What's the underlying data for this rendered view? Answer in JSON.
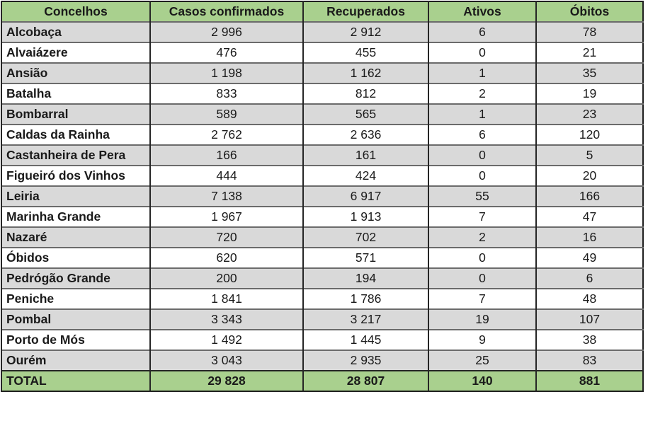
{
  "chart_data": {
    "type": "table",
    "columns": [
      "Concelhos",
      "Casos confirmados",
      "Recuperados",
      "Ativos",
      "Óbitos"
    ],
    "rows": [
      [
        "Alcobaça",
        "2 996",
        "2 912",
        "6",
        "78"
      ],
      [
        "Alvaiázere",
        "476",
        "455",
        "0",
        "21"
      ],
      [
        "Ansião",
        "1 198",
        "1 162",
        "1",
        "35"
      ],
      [
        "Batalha",
        "833",
        "812",
        "2",
        "19"
      ],
      [
        "Bombarral",
        "589",
        "565",
        "1",
        "23"
      ],
      [
        "Caldas da Rainha",
        "2 762",
        "2 636",
        "6",
        "120"
      ],
      [
        "Castanheira de Pera",
        "166",
        "161",
        "0",
        "5"
      ],
      [
        "Figueiró dos Vinhos",
        "444",
        "424",
        "0",
        "20"
      ],
      [
        "Leiria",
        "7 138",
        "6 917",
        "55",
        "166"
      ],
      [
        "Marinha Grande",
        "1 967",
        "1 913",
        "7",
        "47"
      ],
      [
        "Nazaré",
        "720",
        "702",
        "2",
        "16"
      ],
      [
        "Óbidos",
        "620",
        "571",
        "0",
        "49"
      ],
      [
        "Pedrógão Grande",
        "200",
        "194",
        "0",
        "6"
      ],
      [
        "Peniche",
        "1 841",
        "1 786",
        "7",
        "48"
      ],
      [
        "Pombal",
        "3 343",
        "3 217",
        "19",
        "107"
      ],
      [
        "Porto de Mós",
        "1 492",
        "1 445",
        "9",
        "38"
      ],
      [
        "Ourém",
        "3 043",
        "2 935",
        "25",
        "83"
      ]
    ],
    "total_row": [
      "TOTAL",
      "29 828",
      "28 807",
      "140",
      "881"
    ],
    "rows_numeric": {
      "casos_confirmados": [
        2996,
        476,
        1198,
        833,
        589,
        2762,
        166,
        444,
        7138,
        1967,
        720,
        620,
        200,
        1841,
        3343,
        1492,
        3043
      ],
      "recuperados": [
        2912,
        455,
        1162,
        812,
        565,
        2636,
        161,
        424,
        6917,
        1913,
        702,
        571,
        194,
        1786,
        3217,
        1445,
        2935
      ],
      "ativos": [
        6,
        0,
        1,
        2,
        1,
        6,
        0,
        0,
        55,
        7,
        2,
        0,
        0,
        7,
        19,
        9,
        25
      ],
      "obitos": [
        78,
        21,
        35,
        19,
        23,
        120,
        5,
        20,
        166,
        47,
        16,
        49,
        6,
        48,
        107,
        38,
        83
      ],
      "totals": {
        "casos_confirmados": 29828,
        "recuperados": 28807,
        "ativos": 140,
        "obitos": 881
      }
    }
  },
  "colors": {
    "header_bg": "#a9d08e",
    "total_bg": "#a9d08e",
    "row_alt_bg": "#d9d9d9",
    "row_bg": "#ffffff",
    "border_outer": "#1f1f1f",
    "border_vertical": "#262626",
    "border_horizontal": "#6b6b6b",
    "text": "#1a1a1a"
  }
}
